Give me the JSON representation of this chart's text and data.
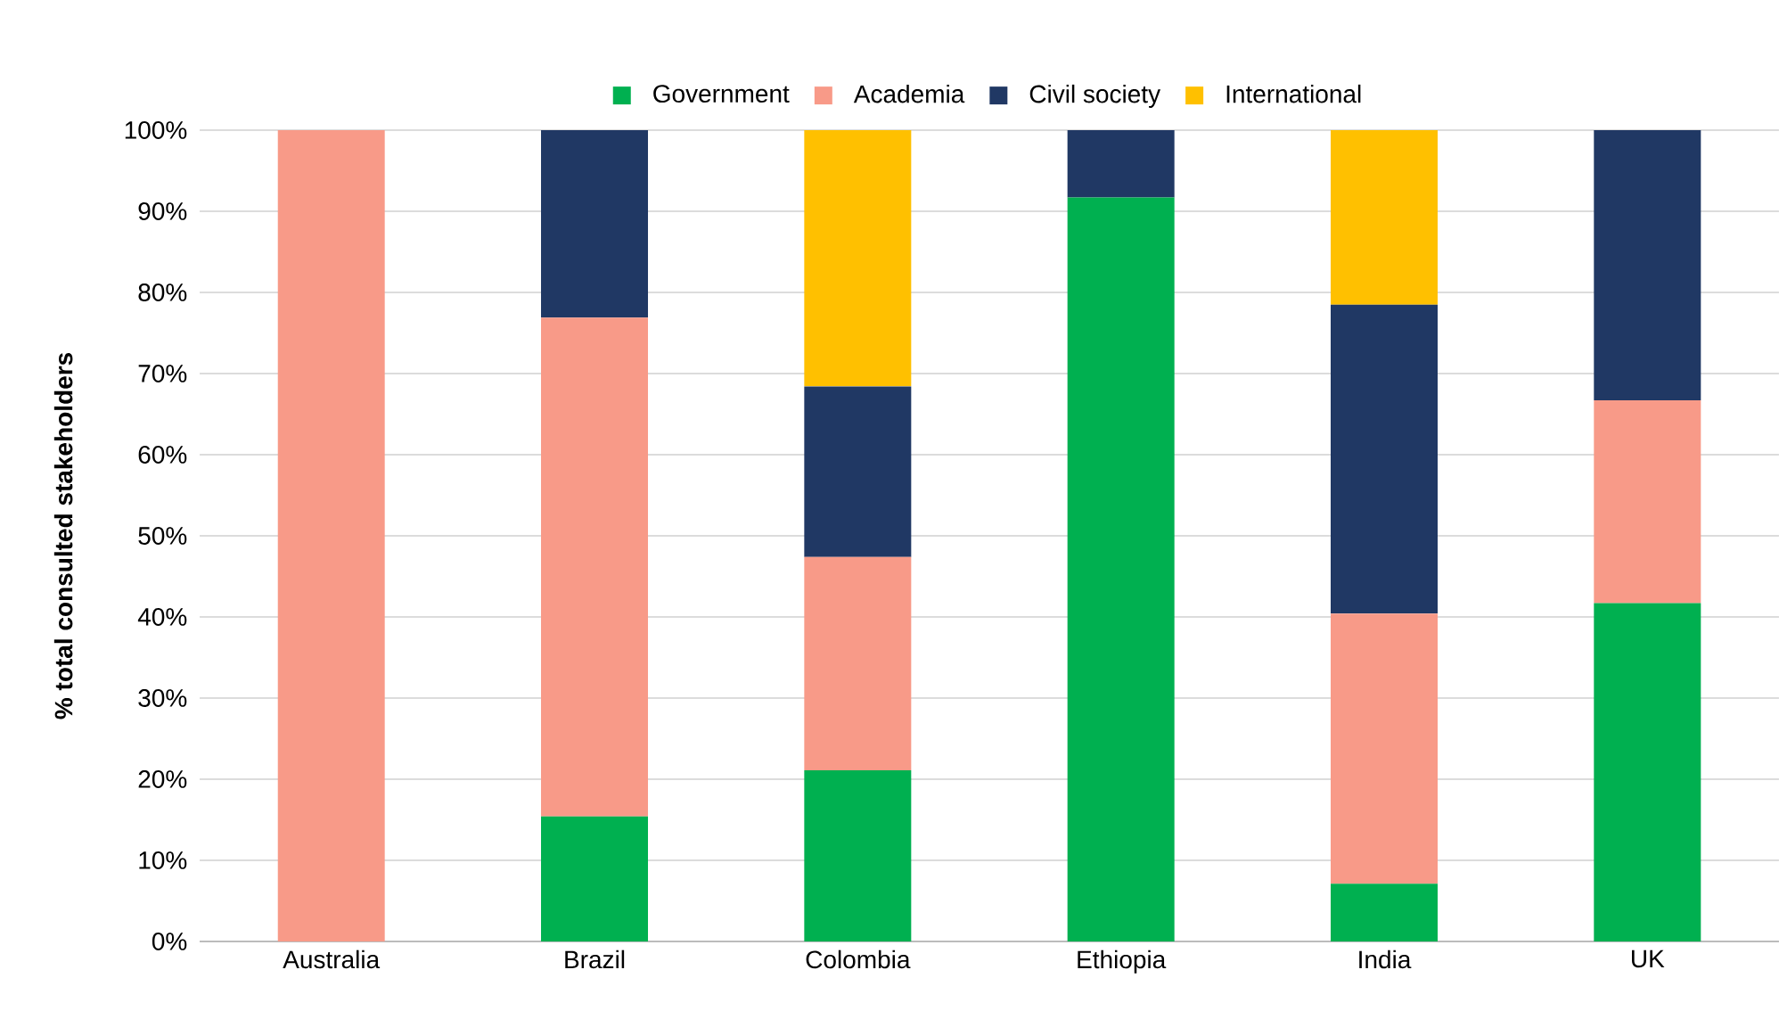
{
  "chart_data": {
    "type": "bar",
    "stacked": true,
    "ylabel": "% total consulted stakeholders",
    "categories": [
      "Australia",
      "Brazil",
      "Colombia",
      "Ethiopia",
      "India",
      "UK"
    ],
    "series": [
      {
        "name": "Government",
        "color": "#00b050",
        "values": [
          0,
          15.4,
          21.1,
          91.7,
          7.1,
          41.7
        ]
      },
      {
        "name": "Academia",
        "color": "#f89a88",
        "values": [
          100,
          61.5,
          26.3,
          0,
          33.3,
          25.0
        ]
      },
      {
        "name": "Civil society",
        "color": "#203864",
        "values": [
          0,
          23.1,
          21.0,
          8.3,
          38.1,
          33.3
        ]
      },
      {
        "name": "International",
        "color": "#ffc000",
        "values": [
          0,
          0,
          31.6,
          0,
          21.5,
          0
        ]
      }
    ],
    "ylim": [
      0,
      100
    ],
    "yticks": [
      {
        "value": 0,
        "label": "0%"
      },
      {
        "value": 10,
        "label": "10%"
      },
      {
        "value": 20,
        "label": "20%"
      },
      {
        "value": 30,
        "label": "30%"
      },
      {
        "value": 40,
        "label": "40%"
      },
      {
        "value": 50,
        "label": "50%"
      },
      {
        "value": 60,
        "label": "60%"
      },
      {
        "value": 70,
        "label": "70%"
      },
      {
        "value": 80,
        "label": "80%"
      },
      {
        "value": 90,
        "label": "90%"
      },
      {
        "value": 100,
        "label": "100%"
      }
    ],
    "grid": "y",
    "legend": "top"
  }
}
